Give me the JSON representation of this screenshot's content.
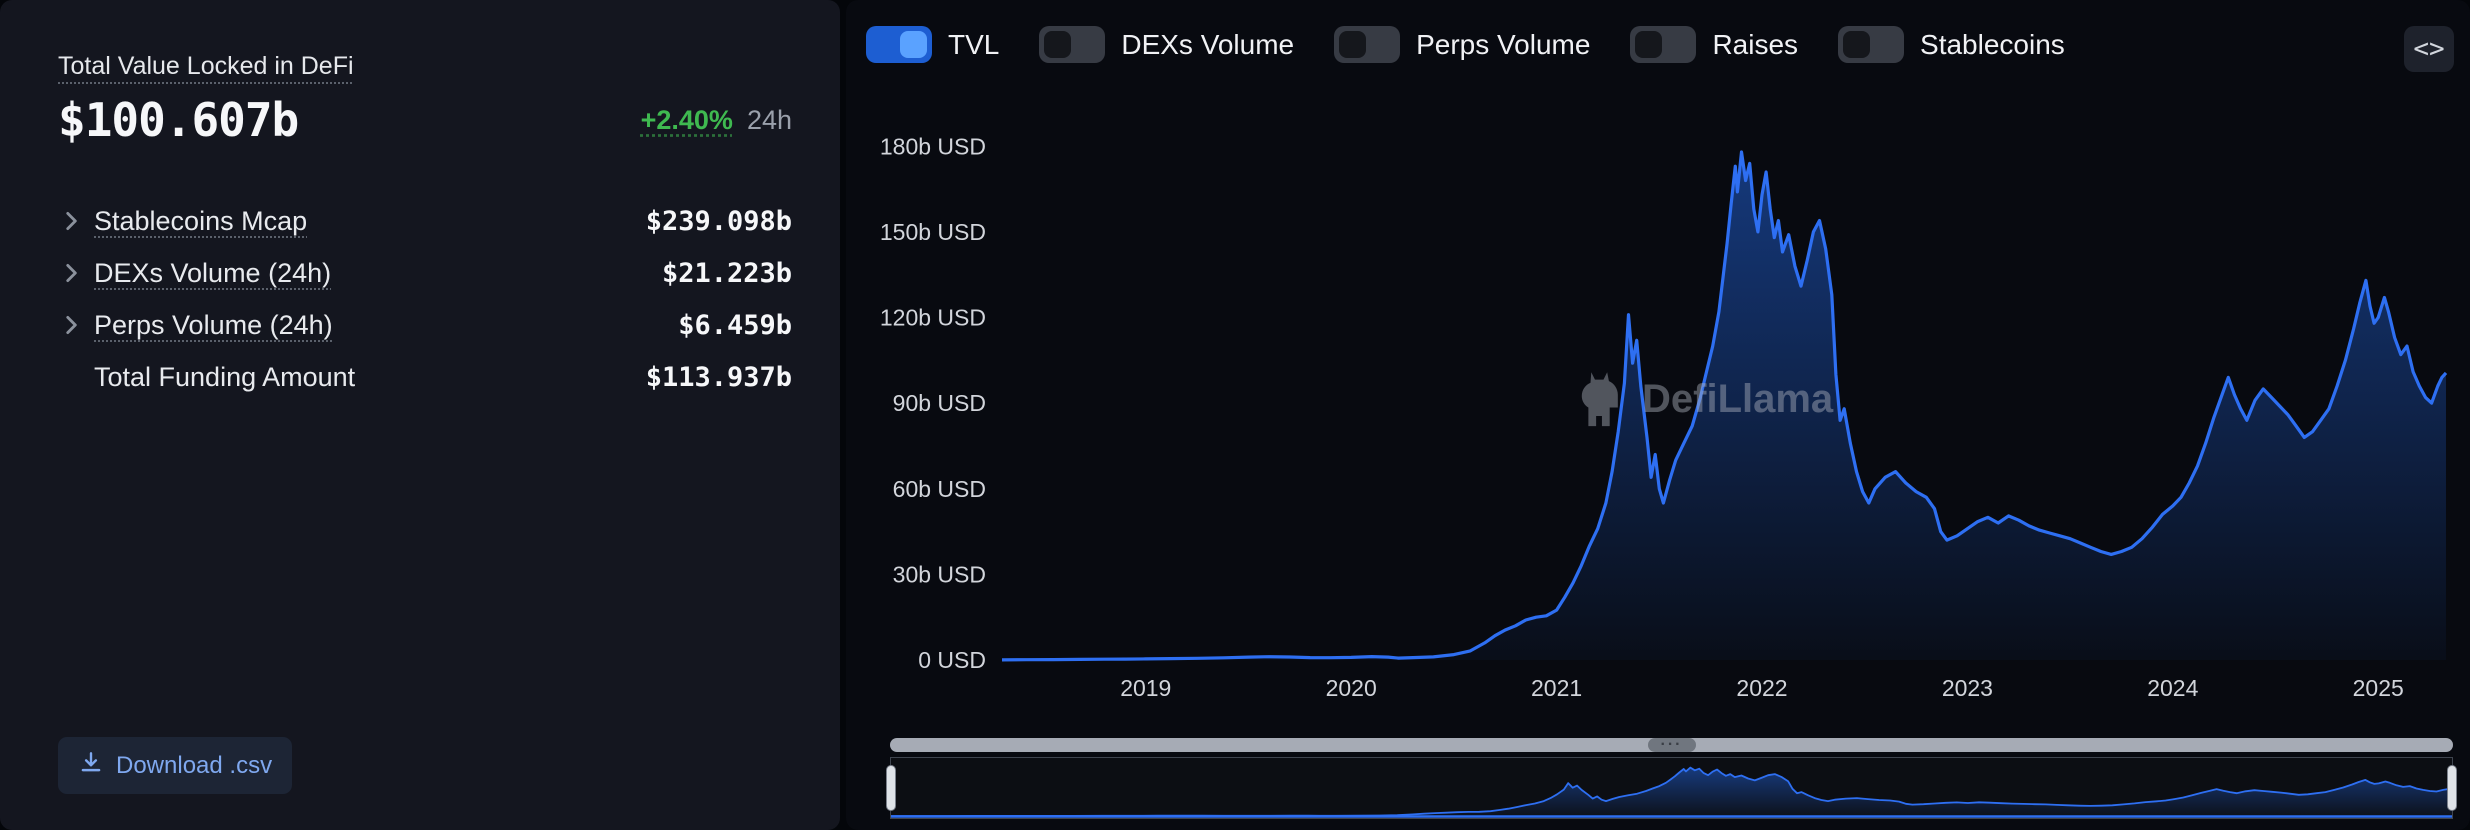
{
  "left_panel": {
    "title": "Total Value Locked in DeFi",
    "tvl_value": "$100.607b",
    "change_pct": "+2.40%",
    "change_period": "24h",
    "metrics": [
      {
        "label": "Stablecoins Mcap",
        "value": "$239.098b",
        "expandable": true
      },
      {
        "label": "DEXs Volume (24h)",
        "value": "$21.223b",
        "expandable": true
      },
      {
        "label": "Perps Volume (24h)",
        "value": "$6.459b",
        "expandable": true
      },
      {
        "label": "Total Funding Amount",
        "value": "$113.937b",
        "expandable": false
      }
    ],
    "download_button": "Download .csv"
  },
  "right_panel": {
    "toggles": [
      {
        "label": "TVL",
        "on": true
      },
      {
        "label": "DEXs Volume",
        "on": false
      },
      {
        "label": "Perps Volume",
        "on": false
      },
      {
        "label": "Raises",
        "on": false
      },
      {
        "label": "Stablecoins",
        "on": false
      }
    ],
    "embed_label": "<>",
    "watermark": "DefiLlama"
  },
  "colors": {
    "accent_blue": "#2172e5",
    "line": "#2e6ff2",
    "area_top": "#2268e8",
    "area_bottom": "#2268e8",
    "positive_green": "#3fb950"
  },
  "chart_data": {
    "type": "area",
    "title": "",
    "xlabel": "",
    "ylabel": "USD",
    "unit": "b USD",
    "legend_position": "top",
    "grid": false,
    "xlim": [
      2018.3,
      2025.33
    ],
    "ylim": [
      0,
      185
    ],
    "xticks": [
      2019,
      2020,
      2021,
      2022,
      2023,
      2024,
      2025
    ],
    "xtick_labels": [
      "2019",
      "2020",
      "2021",
      "2022",
      "2023",
      "2024",
      "2025"
    ],
    "yticks": [
      0,
      30,
      60,
      90,
      120,
      150,
      180
    ],
    "ytick_labels": [
      "0 USD",
      "30b USD",
      "60b USD",
      "90b USD",
      "120b USD",
      "150b USD",
      "180b USD"
    ],
    "series": [
      {
        "name": "TVL",
        "points": [
          [
            2018.3,
            0.04
          ],
          [
            2018.42,
            0.09
          ],
          [
            2018.55,
            0.14
          ],
          [
            2018.68,
            0.2
          ],
          [
            2018.8,
            0.27
          ],
          [
            2018.9,
            0.33
          ],
          [
            2019.0,
            0.4
          ],
          [
            2019.12,
            0.48
          ],
          [
            2019.25,
            0.6
          ],
          [
            2019.38,
            0.78
          ],
          [
            2019.5,
            1.0
          ],
          [
            2019.6,
            1.15
          ],
          [
            2019.7,
            1.05
          ],
          [
            2019.8,
            0.85
          ],
          [
            2019.9,
            0.8
          ],
          [
            2020.0,
            0.9
          ],
          [
            2020.1,
            1.2
          ],
          [
            2020.18,
            1.0
          ],
          [
            2020.23,
            0.65
          ],
          [
            2020.3,
            0.85
          ],
          [
            2020.4,
            1.1
          ],
          [
            2020.5,
            1.9
          ],
          [
            2020.58,
            3.2
          ],
          [
            2020.65,
            6.0
          ],
          [
            2020.7,
            8.5
          ],
          [
            2020.75,
            10.5
          ],
          [
            2020.8,
            12.0
          ],
          [
            2020.85,
            14.0
          ],
          [
            2020.9,
            15.0
          ],
          [
            2020.95,
            15.5
          ],
          [
            2021.0,
            17.5
          ],
          [
            2021.04,
            22
          ],
          [
            2021.08,
            27
          ],
          [
            2021.12,
            33
          ],
          [
            2021.16,
            40
          ],
          [
            2021.2,
            46
          ],
          [
            2021.24,
            55
          ],
          [
            2021.27,
            66
          ],
          [
            2021.3,
            80
          ],
          [
            2021.33,
            97
          ],
          [
            2021.35,
            121
          ],
          [
            2021.37,
            104
          ],
          [
            2021.39,
            112
          ],
          [
            2021.41,
            96
          ],
          [
            2021.44,
            78
          ],
          [
            2021.46,
            64
          ],
          [
            2021.48,
            72
          ],
          [
            2021.5,
            60
          ],
          [
            2021.52,
            55
          ],
          [
            2021.55,
            63
          ],
          [
            2021.58,
            70
          ],
          [
            2021.62,
            76
          ],
          [
            2021.66,
            82
          ],
          [
            2021.7,
            92
          ],
          [
            2021.73,
            101
          ],
          [
            2021.76,
            110
          ],
          [
            2021.79,
            122
          ],
          [
            2021.81,
            134
          ],
          [
            2021.83,
            146
          ],
          [
            2021.85,
            160
          ],
          [
            2021.87,
            173
          ],
          [
            2021.88,
            164
          ],
          [
            2021.9,
            178
          ],
          [
            2021.92,
            168
          ],
          [
            2021.94,
            174
          ],
          [
            2021.96,
            158
          ],
          [
            2021.98,
            150
          ],
          [
            2022.0,
            163
          ],
          [
            2022.02,
            171
          ],
          [
            2022.04,
            158
          ],
          [
            2022.06,
            148
          ],
          [
            2022.08,
            154
          ],
          [
            2022.1,
            143
          ],
          [
            2022.13,
            149
          ],
          [
            2022.16,
            138
          ],
          [
            2022.19,
            131
          ],
          [
            2022.22,
            140
          ],
          [
            2022.25,
            150
          ],
          [
            2022.28,
            154
          ],
          [
            2022.31,
            144
          ],
          [
            2022.34,
            128
          ],
          [
            2022.36,
            100
          ],
          [
            2022.38,
            84
          ],
          [
            2022.4,
            88
          ],
          [
            2022.43,
            76
          ],
          [
            2022.46,
            66
          ],
          [
            2022.49,
            59
          ],
          [
            2022.52,
            55
          ],
          [
            2022.55,
            60
          ],
          [
            2022.6,
            64
          ],
          [
            2022.65,
            66
          ],
          [
            2022.7,
            62
          ],
          [
            2022.75,
            59
          ],
          [
            2022.8,
            57
          ],
          [
            2022.84,
            53
          ],
          [
            2022.87,
            45
          ],
          [
            2022.9,
            42
          ],
          [
            2022.95,
            43.5
          ],
          [
            2023.0,
            46
          ],
          [
            2023.05,
            48.5
          ],
          [
            2023.1,
            50
          ],
          [
            2023.15,
            48
          ],
          [
            2023.2,
            50.5
          ],
          [
            2023.25,
            49
          ],
          [
            2023.3,
            47
          ],
          [
            2023.35,
            45.5
          ],
          [
            2023.4,
            44.5
          ],
          [
            2023.45,
            43.5
          ],
          [
            2023.5,
            42.5
          ],
          [
            2023.55,
            41
          ],
          [
            2023.6,
            39.5
          ],
          [
            2023.65,
            38
          ],
          [
            2023.7,
            37
          ],
          [
            2023.75,
            38
          ],
          [
            2023.8,
            39.5
          ],
          [
            2023.85,
            42.5
          ],
          [
            2023.9,
            46.5
          ],
          [
            2023.95,
            51
          ],
          [
            2024.0,
            54
          ],
          [
            2024.04,
            57
          ],
          [
            2024.08,
            62
          ],
          [
            2024.12,
            68
          ],
          [
            2024.16,
            76
          ],
          [
            2024.2,
            85
          ],
          [
            2024.24,
            93
          ],
          [
            2024.27,
            99
          ],
          [
            2024.3,
            93
          ],
          [
            2024.33,
            88
          ],
          [
            2024.36,
            84
          ],
          [
            2024.4,
            91
          ],
          [
            2024.44,
            95
          ],
          [
            2024.48,
            92
          ],
          [
            2024.52,
            89
          ],
          [
            2024.56,
            86
          ],
          [
            2024.6,
            82
          ],
          [
            2024.64,
            78
          ],
          [
            2024.68,
            80
          ],
          [
            2024.72,
            84
          ],
          [
            2024.76,
            88
          ],
          [
            2024.8,
            96
          ],
          [
            2024.84,
            105
          ],
          [
            2024.88,
            116
          ],
          [
            2024.91,
            125
          ],
          [
            2024.94,
            133
          ],
          [
            2024.96,
            124
          ],
          [
            2024.98,
            118
          ],
          [
            2025.0,
            120
          ],
          [
            2025.03,
            127
          ],
          [
            2025.05,
            122
          ],
          [
            2025.08,
            113
          ],
          [
            2025.11,
            107
          ],
          [
            2025.14,
            110
          ],
          [
            2025.17,
            101
          ],
          [
            2025.2,
            96
          ],
          [
            2025.23,
            92
          ],
          [
            2025.26,
            90
          ],
          [
            2025.29,
            96
          ],
          [
            2025.31,
            99
          ],
          [
            2025.33,
            100.6
          ]
        ]
      }
    ]
  }
}
